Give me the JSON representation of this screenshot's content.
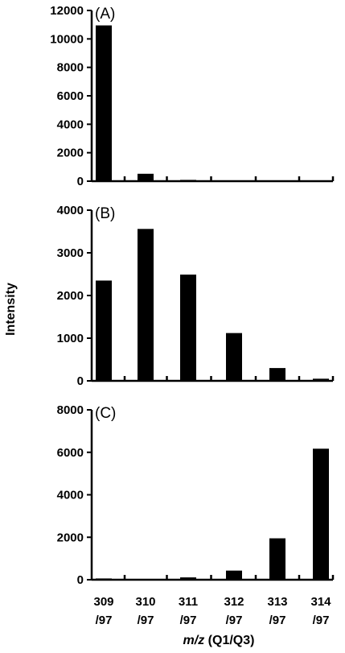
{
  "chart_data": [
    {
      "type": "bar",
      "panel_label": "(A)",
      "categories": [
        "309/97",
        "310/97",
        "311/97",
        "312/97",
        "313/97",
        "314/97"
      ],
      "values": [
        10950,
        520,
        90,
        0,
        0,
        0
      ],
      "ylim": [
        0,
        12000
      ],
      "yticks": [
        0,
        2000,
        4000,
        6000,
        8000,
        10000,
        12000
      ],
      "color": "#000000"
    },
    {
      "type": "bar",
      "panel_label": "(B)",
      "categories": [
        "309/97",
        "310/97",
        "311/97",
        "312/97",
        "313/97",
        "314/97"
      ],
      "values": [
        2350,
        3560,
        2490,
        1120,
        300,
        50
      ],
      "ylim": [
        0,
        4000
      ],
      "yticks": [
        0,
        1000,
        2000,
        3000,
        4000
      ],
      "color": "#000000"
    },
    {
      "type": "bar",
      "panel_label": "(C)",
      "categories": [
        "309/97",
        "310/97",
        "311/97",
        "312/97",
        "313/97",
        "314/97"
      ],
      "values": [
        60,
        0,
        110,
        430,
        1950,
        6170
      ],
      "ylim": [
        0,
        8000
      ],
      "yticks": [
        0,
        2000,
        4000,
        6000,
        8000
      ],
      "color": "#000000"
    }
  ],
  "ylabel": "Intensity",
  "xlabel_italic": "m/z",
  "xlabel_rest": " (Q1/Q3)",
  "x_categories": [
    {
      "top": "309",
      "bottom": "/97"
    },
    {
      "top": "310",
      "bottom": "/97"
    },
    {
      "top": "311",
      "bottom": "/97"
    },
    {
      "top": "312",
      "bottom": "/97"
    },
    {
      "top": "313",
      "bottom": "/97"
    },
    {
      "top": "314",
      "bottom": "/97"
    }
  ]
}
